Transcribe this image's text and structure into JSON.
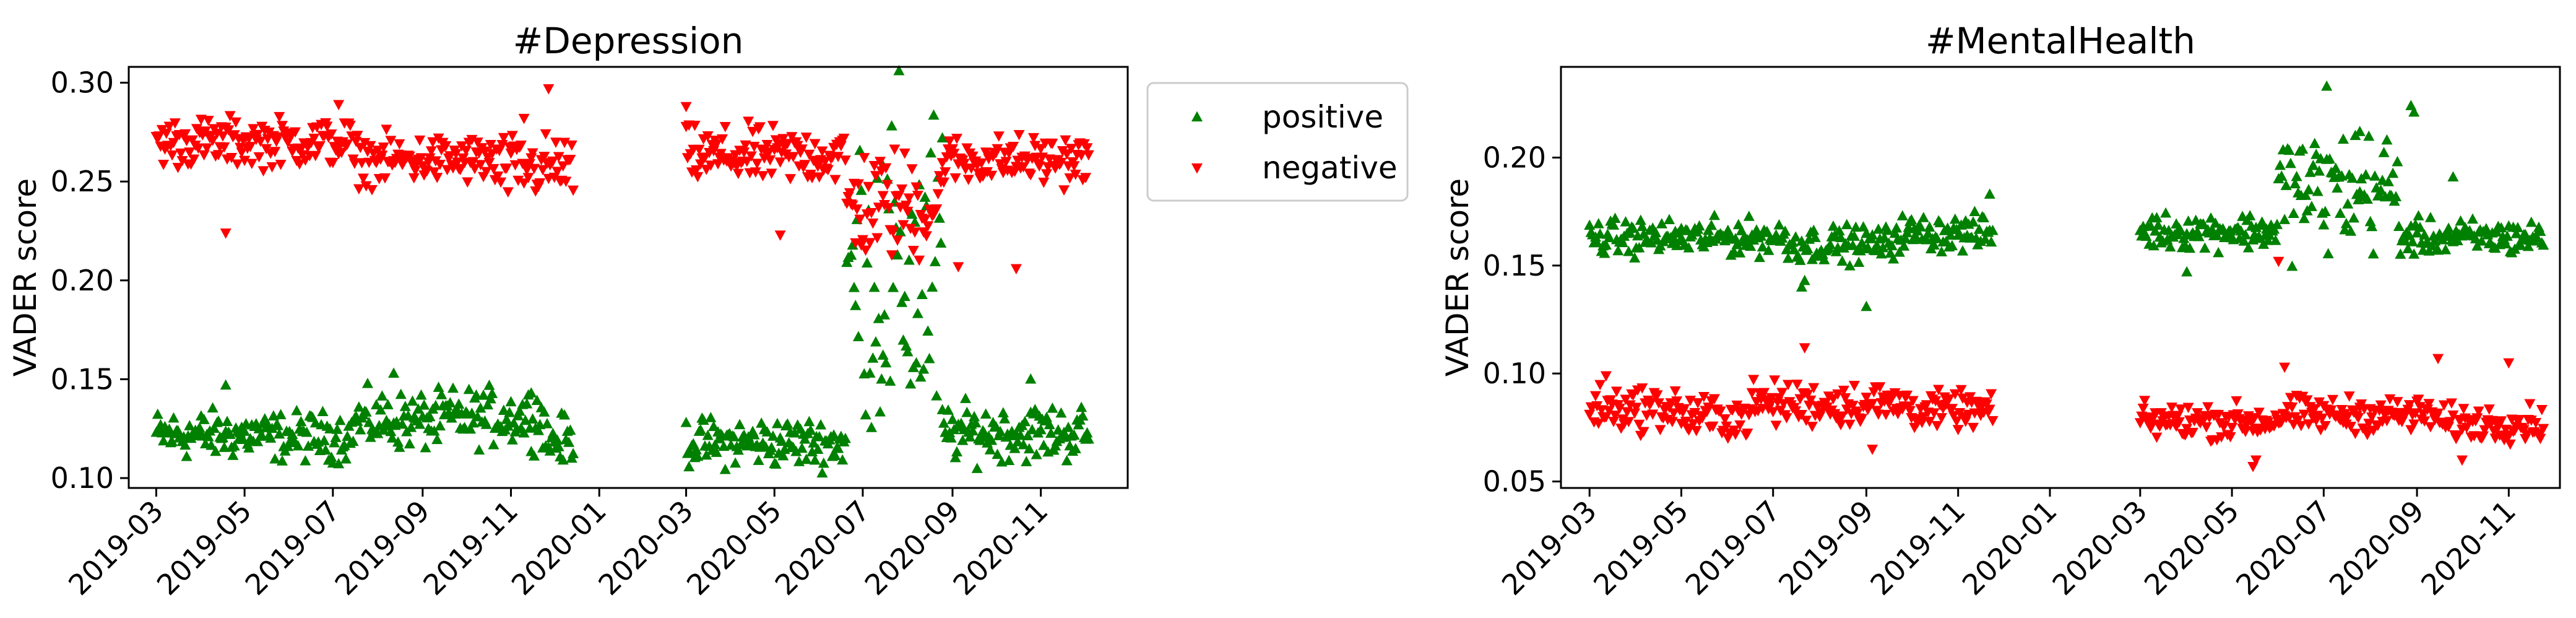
{
  "chart_data": [
    {
      "type": "scatter",
      "title": "#Depression",
      "ylabel": "VADER score",
      "xlabel": "",
      "xlim": [
        "2019-02-10",
        "2020-12-31"
      ],
      "ylim": [
        0.095,
        0.308
      ],
      "yticks": [
        0.1,
        0.15,
        0.2,
        0.25,
        0.3
      ],
      "ytick_labels": [
        "0.10",
        "0.15",
        "0.20",
        "0.25",
        "0.30"
      ],
      "xticks": [
        "2019-03-01",
        "2019-05-01",
        "2019-07-01",
        "2019-09-01",
        "2019-11-01",
        "2020-01-01",
        "2020-03-01",
        "2020-05-01",
        "2020-07-01",
        "2020-09-01",
        "2020-11-01"
      ],
      "xtick_labels": [
        "2019-03",
        "2019-05",
        "2019-07",
        "2019-09",
        "2019-11",
        "2020-01",
        "2020-03",
        "2020-05",
        "2020-07",
        "2020-09",
        "2020-11"
      ],
      "legend": {
        "position": "outside-right-top",
        "entries": [
          "positive",
          "negative"
        ]
      },
      "grid": false,
      "date_ranges": [
        [
          "2019-03-01",
          "2019-12-15"
        ],
        [
          "2020-03-01",
          "2020-12-05"
        ]
      ],
      "series": [
        {
          "name": "positive",
          "marker": "triangle-up",
          "color": "#008000",
          "segments": [
            {
              "from": "2019-03-01",
              "to": "2019-05-15",
              "mean": 0.122,
              "spread": 0.006
            },
            {
              "from": "2019-05-15",
              "to": "2019-07-15",
              "mean": 0.121,
              "spread": 0.006
            },
            {
              "from": "2019-07-15",
              "to": "2019-09-15",
              "mean": 0.129,
              "spread": 0.007
            },
            {
              "from": "2019-09-15",
              "to": "2019-11-25",
              "mean": 0.131,
              "spread": 0.007
            },
            {
              "from": "2019-11-25",
              "to": "2019-12-15",
              "mean": 0.119,
              "spread": 0.006
            },
            {
              "from": "2020-03-01",
              "to": "2020-06-20",
              "mean": 0.118,
              "spread": 0.006
            },
            {
              "from": "2020-06-20",
              "to": "2020-08-25",
              "mean": 0.2,
              "spread": 0.045
            },
            {
              "from": "2020-08-25",
              "to": "2020-12-05",
              "mean": 0.123,
              "spread": 0.007
            }
          ],
          "outliers": [
            {
              "x": "2019-04-18",
              "y": 0.147
            },
            {
              "x": "2019-08-12",
              "y": 0.153
            },
            {
              "x": "2019-11-15",
              "y": 0.143
            },
            {
              "x": "2020-07-15",
              "y": 0.258
            },
            {
              "x": "2020-08-25",
              "y": 0.272
            },
            {
              "x": "2020-10-25",
              "y": 0.15
            }
          ]
        },
        {
          "name": "negative",
          "marker": "triangle-down",
          "color": "#ff0000",
          "segments": [
            {
              "from": "2019-03-01",
              "to": "2019-07-15",
              "mean": 0.27,
              "spread": 0.006
            },
            {
              "from": "2019-07-15",
              "to": "2019-10-20",
              "mean": 0.261,
              "spread": 0.006
            },
            {
              "from": "2019-10-20",
              "to": "2019-12-15",
              "mean": 0.257,
              "spread": 0.008
            },
            {
              "from": "2020-03-01",
              "to": "2020-06-20",
              "mean": 0.263,
              "spread": 0.007
            },
            {
              "from": "2020-06-20",
              "to": "2020-08-25",
              "mean": 0.238,
              "spread": 0.014
            },
            {
              "from": "2020-08-25",
              "to": "2020-12-05",
              "mean": 0.261,
              "spread": 0.006
            }
          ],
          "outliers": [
            {
              "x": "2019-04-18",
              "y": 0.224
            },
            {
              "x": "2019-07-05",
              "y": 0.289
            },
            {
              "x": "2019-11-10",
              "y": 0.282
            },
            {
              "x": "2019-11-27",
              "y": 0.297
            },
            {
              "x": "2020-03-01",
              "y": 0.288
            },
            {
              "x": "2020-05-05",
              "y": 0.223
            },
            {
              "x": "2020-09-05",
              "y": 0.207
            },
            {
              "x": "2020-10-15",
              "y": 0.206
            }
          ]
        }
      ]
    },
    {
      "type": "scatter",
      "title": "#MentalHealth",
      "ylabel": "VADER score",
      "xlabel": "",
      "xlim": [
        "2019-02-10",
        "2020-12-05"
      ],
      "ylim": [
        0.047,
        0.242
      ],
      "yticks": [
        0.05,
        0.1,
        0.15,
        0.2
      ],
      "ytick_labels": [
        "0.05",
        "0.10",
        "0.15",
        "0.20"
      ],
      "xticks": [
        "2019-03-01",
        "2019-05-01",
        "2019-07-01",
        "2019-09-01",
        "2019-11-01",
        "2020-01-01",
        "2020-03-01",
        "2020-05-01",
        "2020-07-01",
        "2020-09-01",
        "2020-11-01"
      ],
      "xtick_labels": [
        "2019-03",
        "2019-05",
        "2019-07",
        "2019-09",
        "2019-11",
        "2020-01",
        "2020-03",
        "2020-05",
        "2020-07",
        "2020-09",
        "2020-11"
      ],
      "grid": false,
      "date_ranges": [
        [
          "2019-03-01",
          "2019-11-25"
        ],
        [
          "2020-03-01",
          "2020-11-25"
        ]
      ],
      "series": [
        {
          "name": "positive",
          "marker": "triangle-up",
          "color": "#008000",
          "segments": [
            {
              "from": "2019-03-01",
              "to": "2019-07-10",
              "mean": 0.163,
              "spread": 0.004
            },
            {
              "from": "2019-07-10",
              "to": "2019-09-20",
              "mean": 0.16,
              "spread": 0.004
            },
            {
              "from": "2019-09-20",
              "to": "2019-11-25",
              "mean": 0.165,
              "spread": 0.004
            },
            {
              "from": "2020-03-01",
              "to": "2020-06-01",
              "mean": 0.166,
              "spread": 0.004
            },
            {
              "from": "2020-06-01",
              "to": "2020-08-20",
              "mean": 0.185,
              "spread": 0.014
            },
            {
              "from": "2020-08-20",
              "to": "2020-11-25",
              "mean": 0.163,
              "spread": 0.004
            }
          ],
          "outliers": [
            {
              "x": "2019-07-20",
              "y": 0.14
            },
            {
              "x": "2019-07-22",
              "y": 0.143
            },
            {
              "x": "2019-09-01",
              "y": 0.131
            },
            {
              "x": "2019-11-22",
              "y": 0.183
            },
            {
              "x": "2020-04-01",
              "y": 0.147
            },
            {
              "x": "2020-07-03",
              "y": 0.233
            },
            {
              "x": "2020-07-25",
              "y": 0.212
            },
            {
              "x": "2020-08-28",
              "y": 0.224
            },
            {
              "x": "2020-08-30",
              "y": 0.221
            },
            {
              "x": "2020-09-25",
              "y": 0.191
            }
          ]
        },
        {
          "name": "negative",
          "marker": "triangle-down",
          "color": "#ff0000",
          "segments": [
            {
              "from": "2019-03-01",
              "to": "2019-05-01",
              "mean": 0.084,
              "spread": 0.005
            },
            {
              "from": "2019-05-01",
              "to": "2019-06-15",
              "mean": 0.08,
              "spread": 0.005
            },
            {
              "from": "2019-06-15",
              "to": "2019-10-01",
              "mean": 0.086,
              "spread": 0.005
            },
            {
              "from": "2019-10-01",
              "to": "2019-11-25",
              "mean": 0.083,
              "spread": 0.004
            },
            {
              "from": "2020-03-01",
              "to": "2020-06-01",
              "mean": 0.078,
              "spread": 0.004
            },
            {
              "from": "2020-06-01",
              "to": "2020-09-15",
              "mean": 0.081,
              "spread": 0.004
            },
            {
              "from": "2020-09-15",
              "to": "2020-11-25",
              "mean": 0.077,
              "spread": 0.004
            }
          ],
          "outliers": [
            {
              "x": "2019-03-12",
              "y": 0.099
            },
            {
              "x": "2019-07-22",
              "y": 0.112
            },
            {
              "x": "2019-09-05",
              "y": 0.065
            },
            {
              "x": "2020-05-15",
              "y": 0.057
            },
            {
              "x": "2020-05-17",
              "y": 0.06
            },
            {
              "x": "2020-06-01",
              "y": 0.152
            },
            {
              "x": "2020-06-05",
              "y": 0.103
            },
            {
              "x": "2020-09-15",
              "y": 0.107
            },
            {
              "x": "2020-10-01",
              "y": 0.06
            },
            {
              "x": "2020-11-01",
              "y": 0.105
            }
          ]
        }
      ]
    }
  ]
}
